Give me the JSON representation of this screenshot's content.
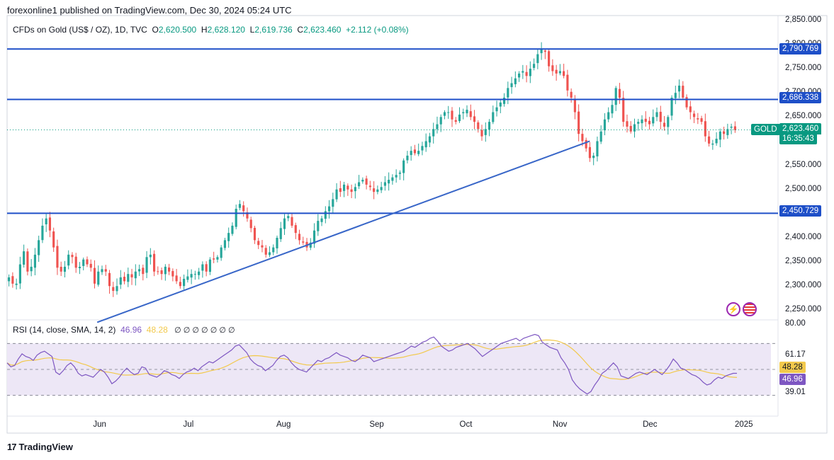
{
  "header": {
    "publisher": "forexonline1 published on TradingView.com, Dec 30, 2024 05:24 UTC"
  },
  "legend": {
    "symbol": "CFDs on Gold (US$ / OZ), 1D, TVC",
    "open_label": "O",
    "open": "2,620.500",
    "high_label": "H",
    "high": "2,628.120",
    "low_label": "L",
    "low": "2,619.736",
    "close_label": "C",
    "close": "2,623.460",
    "change": "+2.112 (+0.08%)"
  },
  "rsi_legend": {
    "label": "RSI (14, close, SMA, 14, 2)",
    "rsi_value": "46.96",
    "sma_value": "48.28",
    "na_markers": "∅ ∅ ∅ ∅ ∅ ∅ ∅"
  },
  "price_axis": {
    "ticks": [
      "2,850.000",
      "2,800.000",
      "2,750.000",
      "2,700.000",
      "2,650.000",
      "2,550.000",
      "2,500.000",
      "2,400.000",
      "2,350.000",
      "2,300.000",
      "2,250.000"
    ]
  },
  "time_axis": {
    "labels": [
      "Jun",
      "Jul",
      "Aug",
      "Sep",
      "Oct",
      "Nov",
      "Dec",
      "2025"
    ]
  },
  "tags": {
    "level_high": "2,790.769",
    "level_mid": "2,686.338",
    "level_low": "2,450.729",
    "symbol_name": "GOLD",
    "last_price": "2,623.460",
    "countdown": "16:35:43",
    "rsi_top": "80.00",
    "rsi_61": "61.17",
    "rsi_sma": "48.28",
    "rsi_now": "46.96",
    "rsi_39": "39.01"
  },
  "colors": {
    "up": "#26a69a",
    "down": "#ef5350",
    "level_line": "#1e4fc8",
    "trendline": "#3866c8",
    "rsi_line": "#7e57c2",
    "rsi_sma": "#f2c94c",
    "rsi_band": "#ede7f6",
    "last_price_tag": "#089981"
  },
  "footer": {
    "brand": "TradingView"
  },
  "chart_data": {
    "type": "candlestick",
    "instrument": "CFDs on Gold (US$ / OZ)",
    "timeframe": "1D",
    "x_range": [
      "2024-05-01",
      "2024-12-30"
    ],
    "ylim": [
      2230,
      2860
    ],
    "horizontal_levels": [
      2790.769,
      2686.338,
      2450.729
    ],
    "trendline": {
      "from": {
        "date": "2024-05-31",
        "price": 2225
      },
      "to": {
        "date": "2024-11-11",
        "price": 2600
      }
    },
    "last_price": 2623.46,
    "ohlc_last": {
      "open": 2620.5,
      "high": 2628.12,
      "low": 2619.736,
      "close": 2623.46,
      "change": 2.112,
      "change_pct": 0.08
    },
    "daily_closes_approx": [
      2318,
      2305,
      2305,
      2345,
      2372,
      2330,
      2340,
      2365,
      2395,
      2425,
      2440,
      2415,
      2380,
      2338,
      2330,
      2340,
      2365,
      2360,
      2338,
      2340,
      2355,
      2345,
      2338,
      2305,
      2330,
      2335,
      2330,
      2300,
      2290,
      2300,
      2318,
      2310,
      2325,
      2318,
      2330,
      2335,
      2325,
      2360,
      2365,
      2330,
      2330,
      2325,
      2340,
      2330,
      2320,
      2310,
      2300,
      2315,
      2320,
      2325,
      2325,
      2330,
      2345,
      2330,
      2355,
      2355,
      2360,
      2380,
      2395,
      2410,
      2425,
      2460,
      2470,
      2455,
      2440,
      2420,
      2395,
      2385,
      2380,
      2365,
      2370,
      2380,
      2400,
      2420,
      2440,
      2445,
      2425,
      2410,
      2395,
      2390,
      2380,
      2390,
      2415,
      2435,
      2440,
      2455,
      2465,
      2480,
      2500,
      2495,
      2510,
      2500,
      2495,
      2505,
      2515,
      2520,
      2510,
      2505,
      2495,
      2500,
      2505,
      2515,
      2520,
      2525,
      2530,
      2535,
      2560,
      2570,
      2580,
      2575,
      2580,
      2590,
      2600,
      2610,
      2625,
      2635,
      2650,
      2660,
      2660,
      2645,
      2640,
      2655,
      2660,
      2665,
      2650,
      2640,
      2625,
      2610,
      2625,
      2640,
      2660,
      2670,
      2680,
      2690,
      2710,
      2720,
      2730,
      2740,
      2745,
      2735,
      2750,
      2760,
      2780,
      2790,
      2785,
      2755,
      2745,
      2740,
      2745,
      2735,
      2705,
      2690,
      2660,
      2615,
      2600,
      2585,
      2565,
      2570,
      2600,
      2620,
      2645,
      2660,
      2675,
      2710,
      2690,
      2640,
      2630,
      2620,
      2635,
      2640,
      2645,
      2640,
      2635,
      2650,
      2660,
      2640,
      2630,
      2650,
      2690,
      2700,
      2715,
      2690,
      2670,
      2660,
      2650,
      2645,
      2640,
      2610,
      2595,
      2595,
      2605,
      2620,
      2615,
      2625,
      2630,
      2623
    ],
    "rsi": {
      "name": "RSI (14, close, SMA, 14, 2)",
      "ylim": [
        20,
        80
      ],
      "band": [
        30,
        70
      ],
      "middle": 50,
      "last_rsi": 46.96,
      "last_sma": 48.28,
      "values_approx": [
        55,
        52,
        53,
        58,
        62,
        60,
        59,
        57,
        61,
        63,
        64,
        62,
        60,
        48,
        46,
        49,
        53,
        55,
        52,
        47,
        45,
        46,
        45,
        44,
        47,
        50,
        48,
        44,
        39,
        41,
        44,
        48,
        51,
        48,
        46,
        47,
        52,
        51,
        46,
        45,
        44,
        46,
        49,
        48,
        46,
        45,
        43,
        46,
        48,
        49,
        51,
        49,
        52,
        54,
        56,
        55,
        57,
        59,
        61,
        63,
        65,
        68,
        69,
        66,
        63,
        58,
        55,
        53,
        52,
        49,
        51,
        53,
        57,
        60,
        61,
        59,
        55,
        52,
        50,
        49,
        48,
        51,
        54,
        57,
        56,
        58,
        59,
        61,
        63,
        61,
        60,
        59,
        57,
        56,
        58,
        61,
        60,
        59,
        56,
        57,
        58,
        59,
        60,
        61,
        62,
        63,
        64,
        66,
        68,
        67,
        69,
        71,
        72,
        74,
        75,
        72,
        68,
        66,
        64,
        65,
        67,
        68,
        69,
        70,
        68,
        66,
        63,
        60,
        62,
        64,
        66,
        68,
        70,
        71,
        72,
        73,
        74,
        72,
        74,
        75,
        76,
        77,
        76,
        71,
        69,
        67,
        66,
        65,
        59,
        55,
        50,
        42,
        38,
        35,
        33,
        31,
        33,
        38,
        42,
        47,
        49,
        52,
        55,
        52,
        45,
        44,
        43,
        45,
        47,
        48,
        47,
        46,
        48,
        50,
        48,
        46,
        49,
        53,
        58,
        55,
        51,
        50,
        48,
        46,
        45,
        43,
        40,
        38,
        39,
        42,
        44,
        43,
        45,
        46,
        47,
        47
      ]
    }
  }
}
